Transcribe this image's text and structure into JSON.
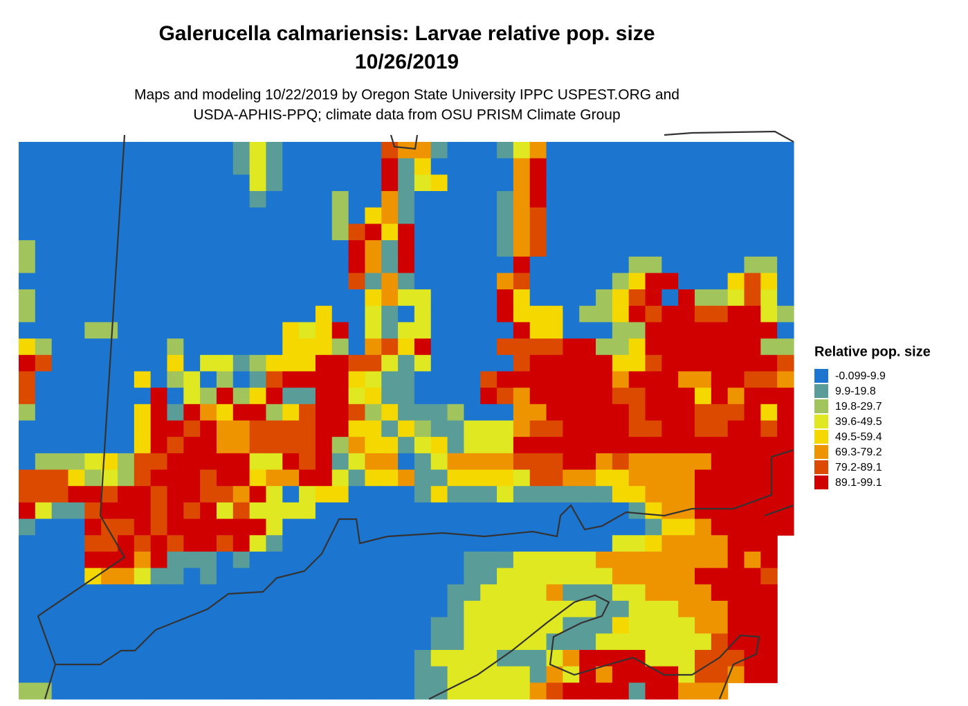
{
  "map": {
    "title": "Galerucella calmariensis: Larvae relative pop. size",
    "date": "10/26/2019",
    "subtitle": [
      "Maps and modeling 10/22/2019 by Oregon State University IPPC USPEST.ORG and",
      "USDA-APHIS-PPQ; climate data from OSU PRISM Climate Group"
    ],
    "legend": {
      "title": "Relative pop. size",
      "items": [
        {
          "label": "-0.099-9.9",
          "color": "#1c76d0"
        },
        {
          "label": "9.9-19.8",
          "color": "#5a9c98"
        },
        {
          "label": "19.8-29.7",
          "color": "#a2c45c"
        },
        {
          "label": "39.6-49.5",
          "color": "#dfe820"
        },
        {
          "label": "49.5-59.4",
          "color": "#f5d800"
        },
        {
          "label": "69.3-79.2",
          "color": "#ee9400"
        },
        {
          "label": "79.2-89.1",
          "color": "#dc4a00"
        },
        {
          "label": "89.1-99.1",
          "color": "#d00000"
        }
      ]
    },
    "grid": [
      [
        0,
        0,
        0,
        0,
        0,
        0,
        0,
        0,
        0,
        0,
        0,
        0,
        0,
        1,
        3,
        1,
        0,
        0,
        0,
        0,
        0,
        0,
        6,
        5,
        5,
        1,
        0,
        0,
        0,
        1,
        3,
        5,
        0,
        0,
        0,
        0,
        0,
        0,
        0,
        0,
        0,
        0,
        0,
        0,
        0,
        0,
        0
      ],
      [
        0,
        0,
        0,
        0,
        0,
        0,
        0,
        0,
        0,
        0,
        0,
        0,
        0,
        1,
        3,
        1,
        0,
        0,
        0,
        0,
        0,
        0,
        7,
        1,
        4,
        0,
        0,
        0,
        0,
        0,
        5,
        7,
        0,
        0,
        0,
        0,
        0,
        0,
        0,
        0,
        0,
        0,
        0,
        0,
        0,
        0,
        0
      ],
      [
        0,
        0,
        0,
        0,
        0,
        0,
        0,
        0,
        0,
        0,
        0,
        0,
        0,
        0,
        3,
        1,
        0,
        0,
        0,
        0,
        0,
        0,
        7,
        1,
        3,
        4,
        0,
        0,
        0,
        0,
        5,
        7,
        0,
        0,
        0,
        0,
        0,
        0,
        0,
        0,
        0,
        0,
        0,
        0,
        0,
        0,
        0
      ],
      [
        0,
        0,
        0,
        0,
        0,
        0,
        0,
        0,
        0,
        0,
        0,
        0,
        0,
        0,
        1,
        0,
        0,
        0,
        0,
        2,
        0,
        0,
        5,
        1,
        0,
        0,
        0,
        0,
        0,
        1,
        5,
        7,
        0,
        0,
        0,
        0,
        0,
        0,
        0,
        0,
        0,
        0,
        0,
        0,
        0,
        0,
        0
      ],
      [
        0,
        0,
        0,
        0,
        0,
        0,
        0,
        0,
        0,
        0,
        0,
        0,
        0,
        0,
        0,
        0,
        0,
        0,
        0,
        2,
        0,
        4,
        5,
        1,
        0,
        0,
        0,
        0,
        0,
        1,
        5,
        6,
        0,
        0,
        0,
        0,
        0,
        0,
        0,
        0,
        0,
        0,
        0,
        0,
        0,
        0,
        0
      ],
      [
        0,
        0,
        0,
        0,
        0,
        0,
        0,
        0,
        0,
        0,
        0,
        0,
        0,
        0,
        0,
        0,
        0,
        0,
        0,
        2,
        6,
        7,
        4,
        7,
        0,
        0,
        0,
        0,
        0,
        1,
        5,
        6,
        0,
        0,
        0,
        0,
        0,
        0,
        0,
        0,
        0,
        0,
        0,
        0,
        0,
        0,
        0
      ],
      [
        2,
        0,
        0,
        0,
        0,
        0,
        0,
        0,
        0,
        0,
        0,
        0,
        0,
        0,
        0,
        0,
        0,
        0,
        0,
        0,
        7,
        5,
        1,
        7,
        0,
        0,
        0,
        0,
        0,
        1,
        5,
        6,
        0,
        0,
        0,
        0,
        0,
        0,
        0,
        0,
        0,
        0,
        0,
        0,
        0,
        0,
        0
      ],
      [
        2,
        0,
        0,
        0,
        0,
        0,
        0,
        0,
        0,
        0,
        0,
        0,
        0,
        0,
        0,
        0,
        0,
        0,
        0,
        0,
        7,
        5,
        1,
        7,
        0,
        0,
        0,
        0,
        0,
        0,
        7,
        0,
        0,
        0,
        0,
        0,
        0,
        2,
        2,
        0,
        0,
        0,
        0,
        0,
        2,
        2,
        0
      ],
      [
        0,
        0,
        0,
        0,
        0,
        0,
        0,
        0,
        0,
        0,
        0,
        0,
        0,
        0,
        0,
        0,
        0,
        0,
        0,
        0,
        6,
        1,
        5,
        1,
        0,
        0,
        0,
        0,
        0,
        5,
        6,
        0,
        0,
        0,
        0,
        0,
        2,
        4,
        7,
        7,
        0,
        0,
        0,
        4,
        6,
        4,
        0
      ],
      [
        2,
        0,
        0,
        0,
        0,
        0,
        0,
        0,
        0,
        0,
        0,
        0,
        0,
        0,
        0,
        0,
        0,
        0,
        0,
        0,
        0,
        4,
        5,
        3,
        3,
        0,
        0,
        0,
        0,
        7,
        4,
        0,
        0,
        0,
        0,
        2,
        4,
        6,
        7,
        0,
        7,
        2,
        2,
        3,
        6,
        3,
        0
      ],
      [
        2,
        0,
        0,
        0,
        0,
        0,
        0,
        0,
        0,
        0,
        0,
        0,
        0,
        0,
        0,
        0,
        0,
        0,
        4,
        0,
        0,
        3,
        1,
        0,
        3,
        0,
        0,
        0,
        0,
        7,
        4,
        4,
        4,
        0,
        2,
        2,
        4,
        7,
        6,
        7,
        7,
        6,
        6,
        7,
        7,
        3,
        2
      ],
      [
        0,
        0,
        0,
        0,
        2,
        2,
        0,
        0,
        0,
        0,
        0,
        0,
        0,
        0,
        0,
        0,
        4,
        3,
        4,
        7,
        0,
        3,
        1,
        3,
        3,
        0,
        0,
        0,
        0,
        0,
        7,
        4,
        4,
        0,
        0,
        0,
        2,
        2,
        7,
        7,
        7,
        7,
        7,
        7,
        7,
        7,
        0
      ],
      [
        4,
        2,
        0,
        0,
        0,
        0,
        0,
        0,
        0,
        2,
        0,
        0,
        0,
        0,
        0,
        0,
        4,
        4,
        4,
        2,
        0,
        5,
        6,
        4,
        7,
        0,
        0,
        0,
        0,
        6,
        6,
        6,
        6,
        7,
        7,
        2,
        2,
        4,
        7,
        7,
        7,
        7,
        7,
        7,
        7,
        2,
        2
      ],
      [
        7,
        6,
        0,
        0,
        0,
        0,
        0,
        0,
        0,
        4,
        0,
        3,
        3,
        1,
        2,
        4,
        4,
        4,
        7,
        7,
        6,
        6,
        3,
        1,
        3,
        0,
        0,
        0,
        0,
        0,
        6,
        7,
        7,
        7,
        7,
        7,
        4,
        4,
        6,
        7,
        7,
        7,
        7,
        7,
        7,
        7,
        6
      ],
      [
        6,
        0,
        0,
        0,
        0,
        0,
        0,
        4,
        0,
        2,
        3,
        0,
        2,
        0,
        1,
        6,
        7,
        7,
        7,
        7,
        4,
        3,
        1,
        1,
        0,
        0,
        0,
        0,
        6,
        7,
        7,
        7,
        7,
        7,
        7,
        7,
        5,
        7,
        7,
        7,
        5,
        5,
        7,
        7,
        6,
        6,
        5
      ],
      [
        6,
        0,
        0,
        0,
        0,
        0,
        0,
        0,
        7,
        0,
        3,
        2,
        7,
        2,
        4,
        7,
        1,
        1,
        7,
        7,
        3,
        4,
        1,
        1,
        0,
        0,
        0,
        0,
        7,
        6,
        5,
        7,
        7,
        7,
        7,
        7,
        6,
        6,
        7,
        7,
        7,
        4,
        7,
        5,
        7,
        7,
        7
      ],
      [
        2,
        0,
        0,
        0,
        0,
        0,
        0,
        4,
        7,
        1,
        7,
        5,
        4,
        7,
        7,
        2,
        4,
        6,
        7,
        7,
        6,
        2,
        4,
        1,
        1,
        1,
        2,
        0,
        0,
        0,
        5,
        5,
        7,
        7,
        7,
        7,
        7,
        6,
        7,
        7,
        7,
        6,
        6,
        6,
        7,
        4,
        7
      ],
      [
        0,
        0,
        0,
        0,
        0,
        0,
        0,
        4,
        7,
        7,
        6,
        7,
        5,
        5,
        6,
        6,
        6,
        6,
        7,
        7,
        4,
        4,
        1,
        4,
        2,
        1,
        1,
        3,
        3,
        3,
        5,
        6,
        6,
        7,
        7,
        7,
        7,
        6,
        6,
        7,
        7,
        6,
        6,
        7,
        7,
        6,
        7
      ],
      [
        0,
        0,
        0,
        0,
        0,
        0,
        0,
        4,
        7,
        6,
        7,
        7,
        5,
        5,
        6,
        6,
        6,
        6,
        7,
        2,
        5,
        4,
        4,
        1,
        3,
        4,
        1,
        3,
        3,
        3,
        7,
        7,
        7,
        7,
        7,
        7,
        7,
        7,
        7,
        7,
        7,
        7,
        7,
        7,
        7,
        7,
        7
      ],
      [
        0,
        2,
        2,
        2,
        3,
        4,
        2,
        6,
        6,
        7,
        7,
        7,
        7,
        7,
        3,
        3,
        7,
        6,
        7,
        1,
        3,
        5,
        5,
        0,
        1,
        3,
        5,
        5,
        5,
        5,
        6,
        6,
        6,
        7,
        7,
        5,
        6,
        5,
        5,
        5,
        5,
        5,
        7,
        7,
        7,
        7,
        7
      ],
      [
        6,
        6,
        6,
        4,
        2,
        3,
        2,
        6,
        7,
        7,
        7,
        6,
        7,
        7,
        4,
        5,
        5,
        7,
        7,
        3,
        1,
        4,
        4,
        5,
        1,
        1,
        4,
        4,
        4,
        4,
        3,
        6,
        6,
        5,
        5,
        4,
        4,
        5,
        5,
        5,
        5,
        7,
        7,
        7,
        7,
        7,
        7
      ],
      [
        6,
        6,
        6,
        7,
        7,
        6,
        7,
        7,
        6,
        7,
        7,
        6,
        6,
        5,
        7,
        3,
        0,
        3,
        4,
        4,
        0,
        0,
        0,
        0,
        1,
        4,
        1,
        1,
        1,
        3,
        1,
        1,
        1,
        1,
        1,
        1,
        4,
        4,
        5,
        5,
        5,
        7,
        7,
        7,
        7,
        7,
        7
      ],
      [
        7,
        3,
        1,
        1,
        6,
        7,
        7,
        7,
        6,
        7,
        6,
        7,
        3,
        6,
        3,
        3,
        3,
        3,
        0,
        0,
        0,
        0,
        0,
        0,
        0,
        0,
        0,
        0,
        0,
        0,
        0,
        0,
        0,
        0,
        0,
        0,
        0,
        1,
        4,
        5,
        5,
        7,
        7,
        7,
        7,
        7,
        7
      ],
      [
        1,
        0,
        0,
        0,
        7,
        6,
        6,
        7,
        6,
        7,
        7,
        7,
        7,
        7,
        7,
        3,
        0,
        0,
        0,
        0,
        0,
        0,
        0,
        0,
        0,
        0,
        0,
        0,
        0,
        0,
        0,
        0,
        0,
        0,
        0,
        0,
        0,
        0,
        1,
        4,
        4,
        5,
        7,
        7,
        7,
        7,
        7
      ],
      [
        0,
        0,
        0,
        0,
        6,
        6,
        7,
        6,
        7,
        6,
        7,
        7,
        6,
        7,
        3,
        1,
        0,
        0,
        0,
        0,
        0,
        0,
        0,
        0,
        0,
        0,
        0,
        0,
        0,
        0,
        0,
        0,
        0,
        0,
        0,
        0,
        3,
        3,
        4,
        5,
        5,
        5,
        5,
        7,
        7,
        7,
        null
      ],
      [
        0,
        0,
        0,
        0,
        7,
        7,
        7,
        5,
        7,
        1,
        1,
        1,
        0,
        1,
        0,
        0,
        0,
        0,
        0,
        0,
        0,
        0,
        0,
        0,
        0,
        0,
        0,
        1,
        1,
        1,
        3,
        3,
        3,
        3,
        3,
        5,
        5,
        5,
        5,
        5,
        5,
        5,
        5,
        7,
        5,
        7,
        null
      ],
      [
        0,
        0,
        0,
        0,
        4,
        5,
        5,
        3,
        1,
        1,
        0,
        1,
        0,
        0,
        0,
        0,
        0,
        0,
        0,
        0,
        0,
        0,
        0,
        0,
        0,
        0,
        0,
        1,
        1,
        3,
        3,
        3,
        3,
        3,
        3,
        3,
        5,
        5,
        5,
        5,
        5,
        7,
        7,
        7,
        7,
        6,
        null
      ],
      [
        0,
        0,
        0,
        0,
        0,
        0,
        0,
        0,
        0,
        0,
        0,
        0,
        0,
        0,
        0,
        0,
        0,
        0,
        0,
        0,
        0,
        0,
        0,
        0,
        0,
        0,
        1,
        1,
        3,
        3,
        3,
        3,
        5,
        1,
        1,
        1,
        3,
        3,
        5,
        5,
        5,
        5,
        7,
        7,
        7,
        7,
        null
      ],
      [
        0,
        0,
        0,
        0,
        0,
        0,
        0,
        0,
        0,
        0,
        0,
        0,
        0,
        0,
        0,
        0,
        0,
        0,
        0,
        0,
        0,
        0,
        0,
        0,
        0,
        0,
        1,
        3,
        3,
        3,
        3,
        3,
        3,
        3,
        3,
        1,
        1,
        3,
        3,
        3,
        5,
        5,
        5,
        7,
        7,
        7,
        null
      ],
      [
        0,
        0,
        0,
        0,
        0,
        0,
        0,
        0,
        0,
        0,
        0,
        0,
        0,
        0,
        0,
        0,
        0,
        0,
        0,
        0,
        0,
        0,
        0,
        0,
        0,
        1,
        1,
        3,
        3,
        3,
        3,
        3,
        3,
        1,
        1,
        1,
        4,
        3,
        3,
        3,
        3,
        5,
        5,
        7,
        7,
        7,
        null
      ],
      [
        0,
        0,
        0,
        0,
        0,
        0,
        0,
        0,
        0,
        0,
        0,
        0,
        0,
        0,
        0,
        0,
        0,
        0,
        0,
        0,
        0,
        0,
        0,
        0,
        0,
        1,
        1,
        3,
        3,
        3,
        3,
        3,
        1,
        1,
        1,
        3,
        3,
        3,
        3,
        3,
        3,
        3,
        6,
        7,
        7,
        7,
        null
      ],
      [
        0,
        0,
        0,
        0,
        0,
        0,
        0,
        0,
        0,
        0,
        0,
        0,
        0,
        0,
        0,
        0,
        0,
        0,
        0,
        0,
        0,
        0,
        0,
        0,
        1,
        3,
        3,
        3,
        3,
        1,
        1,
        1,
        3,
        5,
        7,
        7,
        7,
        7,
        3,
        3,
        3,
        6,
        6,
        6,
        7,
        7,
        null
      ],
      [
        0,
        0,
        0,
        0,
        0,
        0,
        0,
        0,
        0,
        0,
        0,
        0,
        0,
        0,
        0,
        0,
        0,
        0,
        0,
        0,
        0,
        0,
        0,
        0,
        1,
        1,
        3,
        3,
        3,
        3,
        3,
        1,
        5,
        3,
        7,
        5,
        7,
        7,
        7,
        7,
        3,
        6,
        6,
        5,
        7,
        7,
        null
      ],
      [
        2,
        2,
        0,
        0,
        0,
        0,
        0,
        0,
        0,
        0,
        0,
        0,
        0,
        0,
        0,
        0,
        0,
        0,
        0,
        0,
        0,
        0,
        0,
        0,
        1,
        1,
        3,
        3,
        3,
        3,
        3,
        5,
        6,
        7,
        7,
        7,
        7,
        1,
        7,
        7,
        5,
        5,
        5,
        null,
        null,
        null,
        null
      ]
    ]
  }
}
